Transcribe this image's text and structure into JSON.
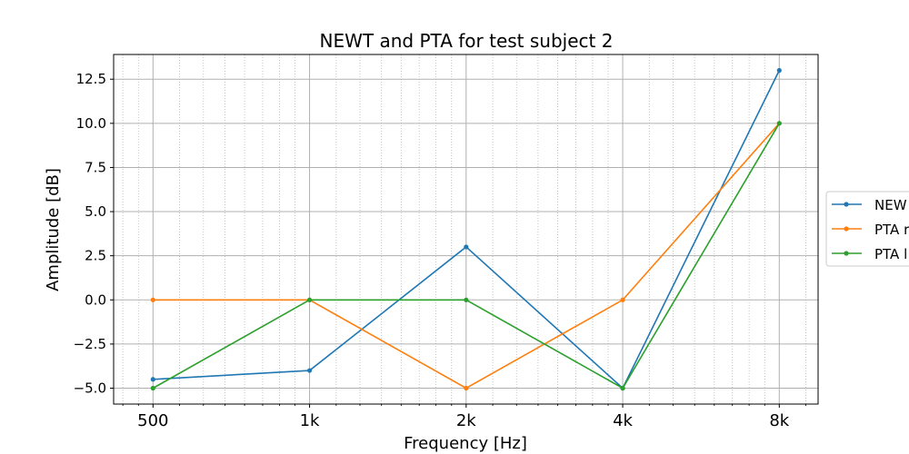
{
  "chart_data": {
    "type": "line",
    "title": "NEWT and PTA for test subject 2",
    "xlabel": "Frequency [Hz]",
    "ylabel": "Amplitude [dB]",
    "x_scale": "log2",
    "x": [
      500,
      1000,
      2000,
      4000,
      8000
    ],
    "x_tick_labels": [
      "500",
      "1k",
      "2k",
      "4k",
      "8k"
    ],
    "xlim": [
      420,
      9500
    ],
    "ylim": [
      -5.9,
      13.9
    ],
    "y_ticks": [
      -5.0,
      -2.5,
      0.0,
      2.5,
      5.0,
      7.5,
      10.0,
      12.5
    ],
    "y_tick_labels": [
      "−5.0",
      "−2.5",
      "0.0",
      "2.5",
      "5.0",
      "7.5",
      "10.0",
      "12.5"
    ],
    "grid": true,
    "legend_position": "right, outside plot (partially cut off)",
    "series": [
      {
        "name": "NEW",
        "color": "#1f77b4",
        "values": [
          -4.5,
          -4.0,
          3.0,
          -5.0,
          13.0
        ]
      },
      {
        "name": "PTA r",
        "color": "#ff7f0e",
        "values": [
          0.0,
          0.0,
          -5.0,
          0.0,
          10.0
        ]
      },
      {
        "name": "PTA l",
        "color": "#2ca02c",
        "values": [
          -5.0,
          0.0,
          0.0,
          -5.0,
          10.0
        ]
      }
    ]
  }
}
